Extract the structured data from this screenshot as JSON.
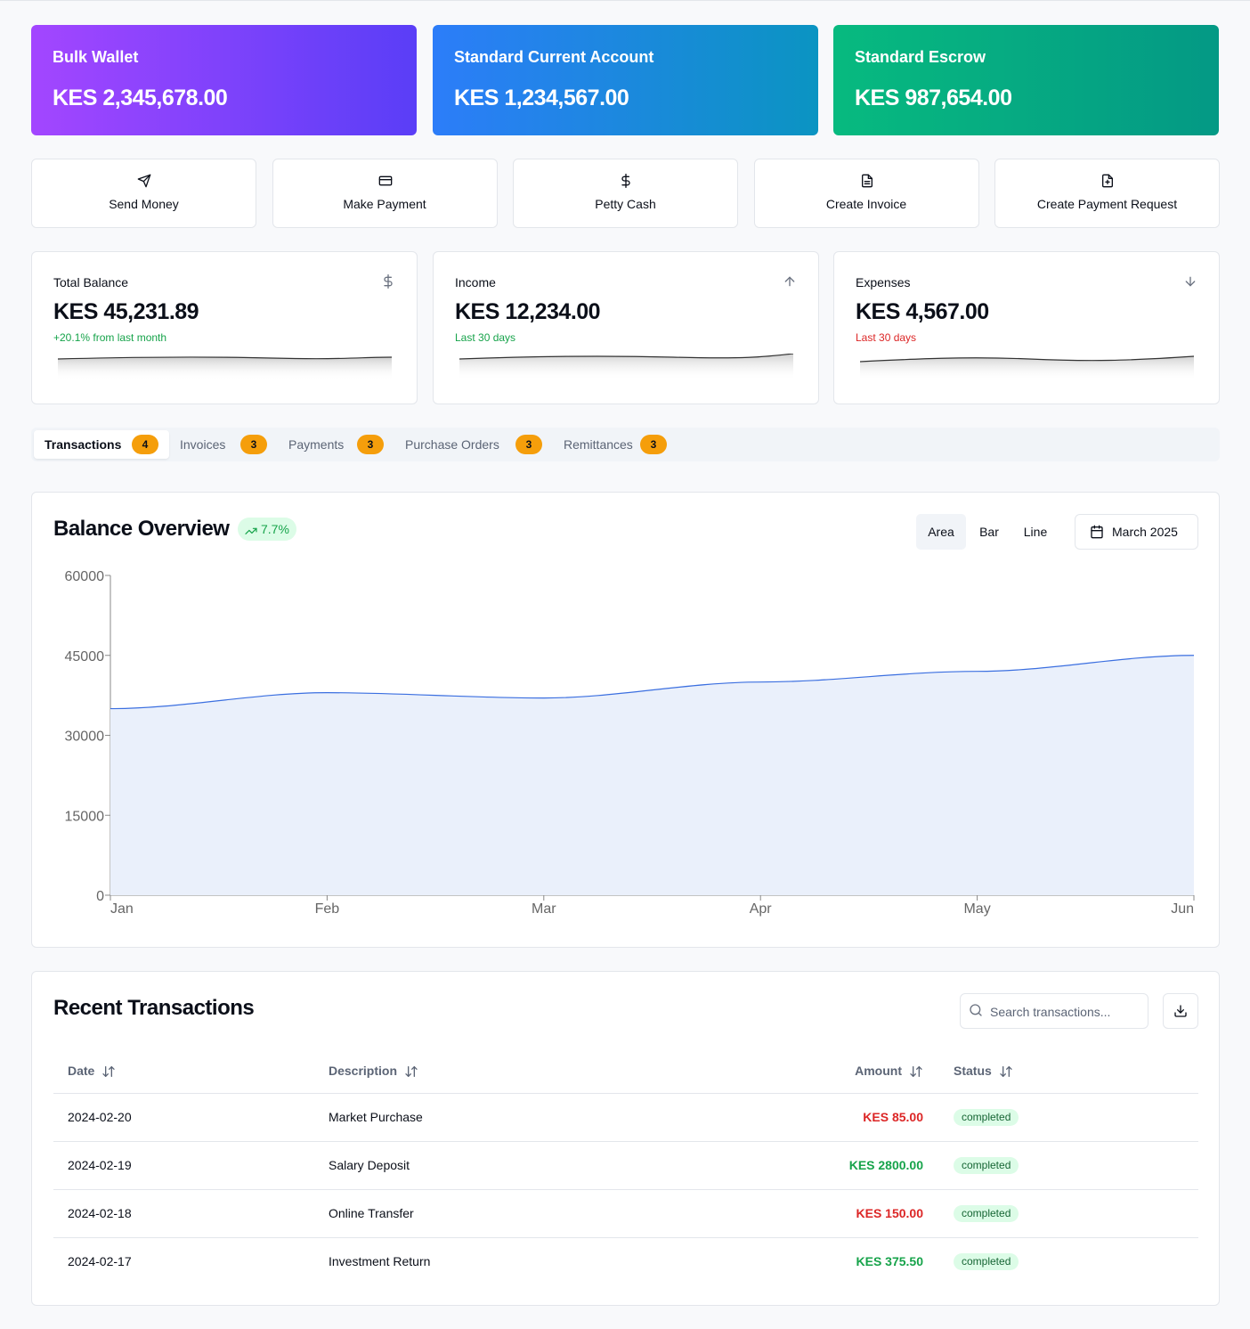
{
  "accounts": [
    {
      "name": "Bulk Wallet",
      "balance": "KES 2,345,678.00",
      "gradient": [
        "#a346ff",
        "#5a3ef7"
      ]
    },
    {
      "name": "Standard Current Account",
      "balance": "KES 1,234,567.00",
      "gradient": [
        "#2c7df9",
        "#0b94c2"
      ]
    },
    {
      "name": "Standard Escrow",
      "balance": "KES 987,654.00",
      "gradient": [
        "#07ba7f",
        "#049985"
      ]
    }
  ],
  "actions": [
    "Send Money",
    "Make Payment",
    "Petty Cash",
    "Create Invoice",
    "Create Payment Request"
  ],
  "stats": [
    {
      "label": "Total Balance",
      "value": "KES 45,231.89",
      "note": "+20.1% from last month",
      "note_color": "#16a34a"
    },
    {
      "label": "Income",
      "value": "KES 12,234.00",
      "note": "Last 30 days",
      "note_color": "#16a34a"
    },
    {
      "label": "Expenses",
      "value": "KES 4,567.00",
      "note": "Last 30 days",
      "note_color": "#dc2626"
    }
  ],
  "tabs": [
    {
      "label": "Transactions",
      "count": 4
    },
    {
      "label": "Invoices",
      "count": 3
    },
    {
      "label": "Payments",
      "count": 3
    },
    {
      "label": "Purchase Orders",
      "count": 3
    },
    {
      "label": "Remittances",
      "count": 3
    }
  ],
  "chart_data": {
    "type": "area",
    "title": "Balance Overview",
    "badge": "7.7%",
    "views": [
      "Area",
      "Bar",
      "Line"
    ],
    "period": "March 2025",
    "categories": [
      "Jan",
      "Feb",
      "Mar",
      "Apr",
      "May",
      "Jun"
    ],
    "values": [
      35000,
      38000,
      37000,
      40000,
      42000,
      45000
    ],
    "color": "#3b6fe0",
    "fill": "#eaf0fb",
    "ylim": [
      0,
      60000
    ],
    "yticks": [
      0,
      15000,
      30000,
      45000,
      60000
    ]
  },
  "transactions": {
    "title": "Recent Transactions",
    "search_placeholder": "Search transactions...",
    "columns": [
      "Date",
      "Description",
      "Amount",
      "Status"
    ],
    "rows": [
      {
        "date": "2024-02-20",
        "description": "Market Purchase",
        "amount": "KES 85.00",
        "status": "completed",
        "amount_color": "#dc2626"
      },
      {
        "date": "2024-02-19",
        "description": "Salary Deposit",
        "amount": "KES 2800.00",
        "status": "completed",
        "amount_color": "#16a34a"
      },
      {
        "date": "2024-02-18",
        "description": "Online Transfer",
        "amount": "KES 150.00",
        "status": "completed",
        "amount_color": "#dc2626"
      },
      {
        "date": "2024-02-17",
        "description": "Investment Return",
        "amount": "KES 375.50",
        "status": "completed",
        "amount_color": "#16a34a"
      }
    ]
  }
}
